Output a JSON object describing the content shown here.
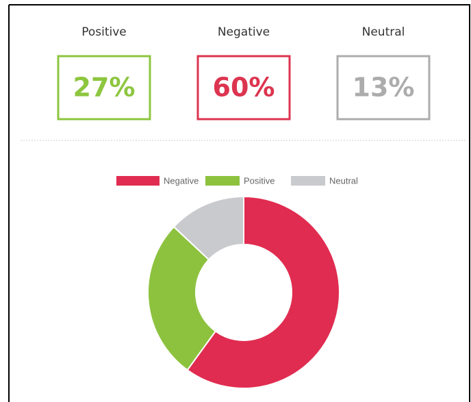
{
  "summary": {
    "labels": [
      "Positive",
      "Negative",
      "Neutral"
    ],
    "values": [
      27,
      60,
      13
    ],
    "value_labels": [
      "27%",
      "60%",
      "13%"
    ],
    "colors": [
      "#8dc63f",
      "#dc3450",
      "#acacac"
    ]
  },
  "chart_data": {
    "type": "doughnut",
    "categories": [
      "Negative",
      "Positive",
      "Neutral"
    ],
    "values": [
      60,
      27,
      13
    ],
    "colors": [
      "#e02c50",
      "#8dc23f",
      "#c9cacd"
    ],
    "legend": "top"
  }
}
